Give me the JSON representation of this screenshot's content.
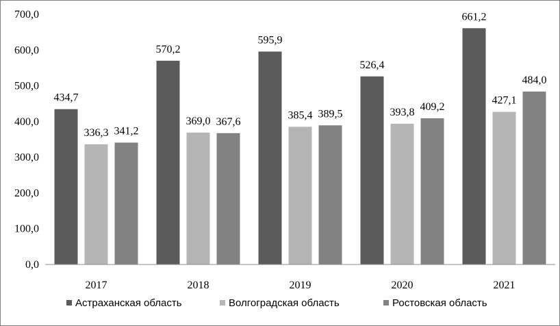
{
  "chart_data": {
    "type": "bar",
    "title": "",
    "xlabel": "",
    "ylabel": "",
    "categories": [
      "2017",
      "2018",
      "2019",
      "2020",
      "2021"
    ],
    "series": [
      {
        "name": "Астраханская область",
        "values": [
          434.7,
          570.2,
          595.9,
          526.4,
          661.2
        ],
        "labels": [
          "434,7",
          "570,2",
          "595,9",
          "526,4",
          "661,2"
        ],
        "color": "#5b5b5b"
      },
      {
        "name": "Волгоградская область",
        "values": [
          336.3,
          369.0,
          385.4,
          393.8,
          427.1
        ],
        "labels": [
          "336,3",
          "369,0",
          "385,4",
          "393,8",
          "427,1"
        ],
        "color": "#b5b5b5"
      },
      {
        "name": "Ростовская область",
        "values": [
          341.2,
          367.6,
          389.5,
          409.2,
          484.0
        ],
        "labels": [
          "341,2",
          "367,6",
          "389,5",
          "409,2",
          "484,0"
        ],
        "color": "#828282"
      }
    ],
    "ylim": [
      0,
      700
    ],
    "yticks": [
      "0,0",
      "100,0",
      "200,0",
      "300,0",
      "400,0",
      "500,0",
      "600,0",
      "700,0"
    ],
    "grid": false,
    "legend_position": "bottom"
  }
}
